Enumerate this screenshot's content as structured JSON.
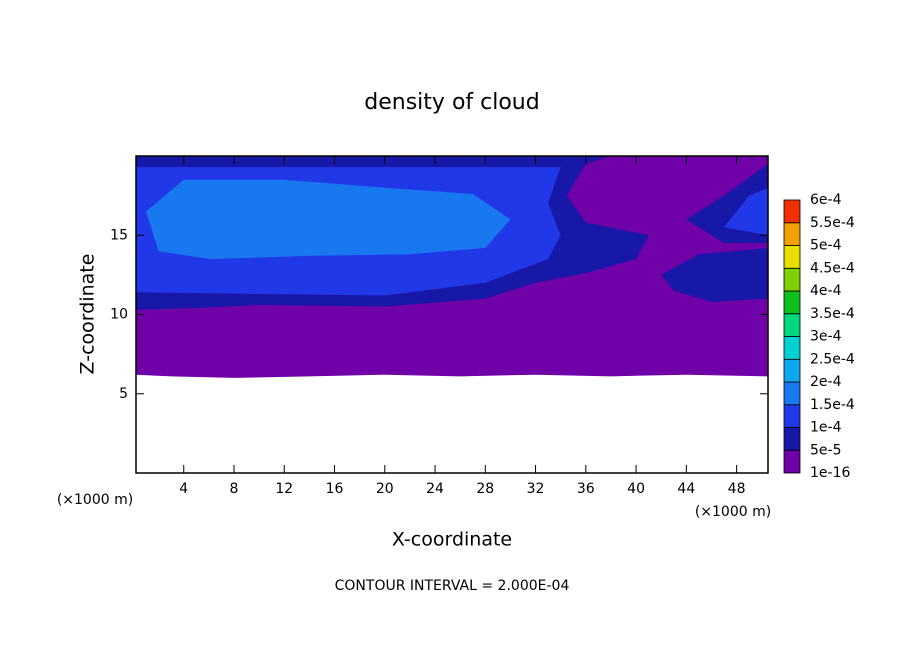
{
  "chart_data": {
    "type": "contour",
    "title": "density of cloud",
    "xlabel": "X-coordinate",
    "ylabel": "Z-coordinate",
    "xunit": "(×1000 m)",
    "yunit": "(×1000 m)",
    "note": "CONTOUR INTERVAL = 2.000E-04",
    "xlim": [
      0.2,
      50.5
    ],
    "ylim": [
      0,
      20
    ],
    "xticks": [
      4,
      8,
      12,
      16,
      20,
      24,
      28,
      32,
      36,
      40,
      44,
      48
    ],
    "yticks": [
      5,
      10,
      15
    ],
    "levels": [
      {
        "value": 1e-16,
        "label": "1e-16"
      },
      {
        "value": 5e-05,
        "label": "5e-5"
      },
      {
        "value": 0.0001,
        "label": "1e-4"
      },
      {
        "value": 0.00015,
        "label": "1.5e-4"
      },
      {
        "value": 0.0002,
        "label": "2e-4"
      },
      {
        "value": 0.00025,
        "label": "2.5e-4"
      },
      {
        "value": 0.0003,
        "label": "3e-4"
      },
      {
        "value": 0.00035,
        "label": "3.5e-4"
      },
      {
        "value": 0.0004,
        "label": "4e-4"
      },
      {
        "value": 0.00045,
        "label": "4.5e-4"
      },
      {
        "value": 0.0005,
        "label": "5e-4"
      },
      {
        "value": 0.00055,
        "label": "5.5e-4"
      },
      {
        "value": 0.0006,
        "label": "6e-4"
      }
    ],
    "colors": [
      "#7000a8",
      "#1818a8",
      "#2038e8",
      "#1878f0",
      "#10a8f0",
      "#00d0d0",
      "#00d880",
      "#10c020",
      "#80d000",
      "#e8e000",
      "#f0a000",
      "#f03000",
      "#f09090"
    ],
    "regions": [
      {
        "level": 1e-16,
        "points": [
          [
            0.2,
            6.2
          ],
          [
            3,
            6.1
          ],
          [
            8,
            6.0
          ],
          [
            14,
            6.1
          ],
          [
            20,
            6.2
          ],
          [
            26,
            6.1
          ],
          [
            32,
            6.2
          ],
          [
            38,
            6.1
          ],
          [
            44,
            6.2
          ],
          [
            50.5,
            6.1
          ],
          [
            50.5,
            20
          ],
          [
            0.2,
            20
          ]
        ]
      },
      {
        "level": 5e-05,
        "points": [
          [
            0.2,
            10.3
          ],
          [
            5,
            10.4
          ],
          [
            10,
            10.6
          ],
          [
            20,
            10.5
          ],
          [
            28,
            11
          ],
          [
            32,
            12
          ],
          [
            36,
            12.6
          ],
          [
            40,
            13.5
          ],
          [
            41,
            15
          ],
          [
            36,
            15.8
          ],
          [
            34.5,
            17.5
          ],
          [
            36,
            19.5
          ],
          [
            38,
            20
          ],
          [
            0.2,
            20
          ]
        ]
      },
      {
        "level": 0.0001,
        "points": [
          [
            0.2,
            11.4
          ],
          [
            10,
            11.3
          ],
          [
            20,
            11.2
          ],
          [
            28,
            12
          ],
          [
            33,
            13.5
          ],
          [
            34,
            15
          ],
          [
            33,
            17
          ],
          [
            34,
            19.3
          ],
          [
            0.2,
            19.3
          ]
        ]
      },
      {
        "level": 0.00015,
        "points": [
          [
            2,
            14
          ],
          [
            6,
            13.5
          ],
          [
            14,
            13.7
          ],
          [
            22,
            13.8
          ],
          [
            28,
            14.2
          ],
          [
            30,
            16
          ],
          [
            27,
            17.6
          ],
          [
            20,
            18
          ],
          [
            12,
            18.5
          ],
          [
            4,
            18.5
          ],
          [
            1,
            16.5
          ]
        ]
      },
      {
        "level": 5e-05,
        "points": [
          [
            44,
            16
          ],
          [
            47,
            17.5
          ],
          [
            50.5,
            19.5
          ],
          [
            50.5,
            14.5
          ],
          [
            47,
            14.5
          ]
        ]
      },
      {
        "level": 5e-05,
        "points": [
          [
            42,
            12.5
          ],
          [
            45,
            13.8
          ],
          [
            50.5,
            14.2
          ],
          [
            50.5,
            11
          ],
          [
            46,
            10.8
          ],
          [
            43,
            11.5
          ]
        ]
      },
      {
        "level": 0.0001,
        "points": [
          [
            47,
            15.5
          ],
          [
            49,
            17.5
          ],
          [
            50.5,
            18
          ],
          [
            50.5,
            15
          ]
        ]
      }
    ]
  }
}
